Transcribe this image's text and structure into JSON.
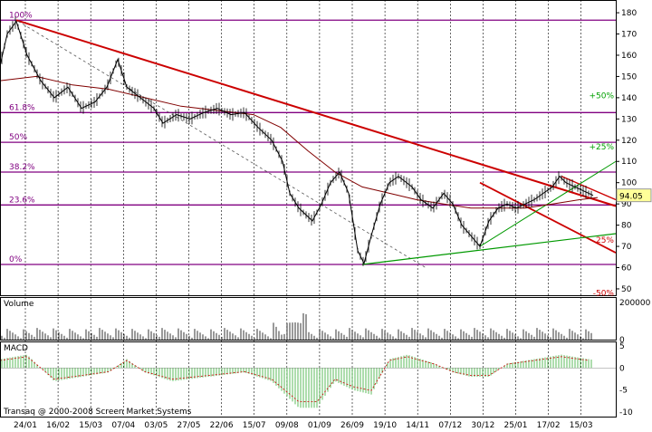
{
  "chart_data": {
    "type": "candlestick",
    "price_panel": {
      "y_ticks": [
        50,
        60,
        70,
        80,
        90,
        100,
        110,
        120,
        130,
        140,
        150,
        160,
        170,
        180
      ],
      "ylim": [
        47,
        186
      ],
      "last_price_label": "94.05",
      "last_price": 94.05,
      "fib_levels": [
        {
          "label": "100%",
          "value": 176.5
        },
        {
          "label": "61.8%",
          "value": 133
        },
        {
          "label": "50%",
          "value": 119
        },
        {
          "label": "38.2%",
          "value": 105
        },
        {
          "label": "23.6%",
          "value": 89.5
        },
        {
          "label": "0%",
          "value": 61.5
        }
      ],
      "target_labels": [
        {
          "label": "+50%",
          "value": 141,
          "color": "#00a000"
        },
        {
          "label": "+25%",
          "value": 117,
          "color": "#00a000"
        },
        {
          "label": "25%",
          "value": 73,
          "color": "#cc0000"
        },
        {
          "label": "-50%",
          "value": 48,
          "color": "#cc0000"
        }
      ]
    },
    "volume_panel": {
      "title": "Volume",
      "y_ticks": [
        0,
        200000
      ],
      "ylim": [
        0,
        230000
      ]
    },
    "macd_panel": {
      "title": "MACD",
      "y_ticks": [
        -10,
        -5,
        0,
        5
      ],
      "ylim": [
        -11,
        6
      ]
    },
    "x_tick_labels": [
      "24/01",
      "16/02",
      "15/03",
      "07/04",
      "03/05",
      "27/05",
      "22/06",
      "15/07",
      "09/08",
      "01/09",
      "26/09",
      "19/10",
      "14/11",
      "07/12",
      "30/12",
      "25/01",
      "17/02",
      "15/03"
    ],
    "copyright": "Transaq @ 2000-2008 Screen Market Systems"
  }
}
